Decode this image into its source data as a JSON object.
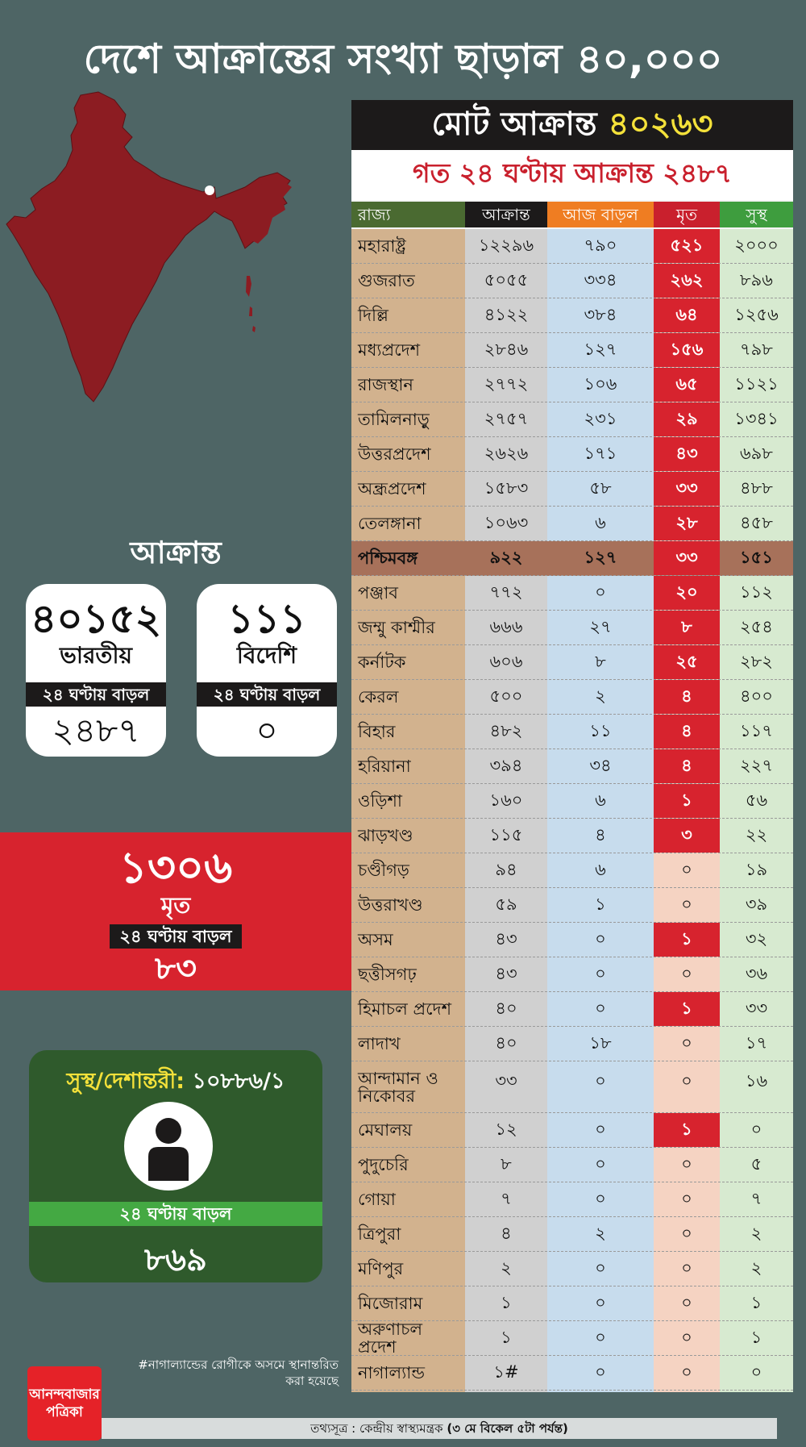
{
  "title": "দেশে আক্রান্তের সংখ্যা ছাড়াল ৪০,০০০",
  "total": {
    "label": "মোট আক্রান্ত",
    "value": "৪০২৬৩"
  },
  "last24": "গত ২৪ ঘণ্টায় আক্রান্ত ২৪৮৭",
  "chart_data": {
    "type": "table",
    "columns": [
      "রাজ্য",
      "আক্রান্ত",
      "আজ বাড়ল",
      "মৃত",
      "সুস্থ"
    ],
    "rows": [
      {
        "state": "মহারাষ্ট্র",
        "confirmed": "১২২৯৬",
        "today": "৭৯০",
        "deaths": "৫২১",
        "recovered": "২০০০",
        "death_highlight": true
      },
      {
        "state": "গুজরাত",
        "confirmed": "৫০৫৫",
        "today": "৩৩৪",
        "deaths": "২৬২",
        "recovered": "৮৯৬",
        "death_highlight": true
      },
      {
        "state": "দিল্লি",
        "confirmed": "৪১২২",
        "today": "৩৮৪",
        "deaths": "৬৪",
        "recovered": "১২৫৬",
        "death_highlight": true
      },
      {
        "state": "মধ্যপ্রদেশ",
        "confirmed": "২৮৪৬",
        "today": "১২৭",
        "deaths": "১৫৬",
        "recovered": "৭৯৮",
        "death_highlight": true
      },
      {
        "state": "রাজস্থান",
        "confirmed": "২৭৭২",
        "today": "১০৬",
        "deaths": "৬৫",
        "recovered": "১১২১",
        "death_highlight": true
      },
      {
        "state": "তামিলনাড়ু",
        "confirmed": "২৭৫৭",
        "today": "২৩১",
        "deaths": "২৯",
        "recovered": "১৩৪১",
        "death_highlight": true
      },
      {
        "state": "উত্তরপ্রদেশ",
        "confirmed": "২৬২৬",
        "today": "১৭১",
        "deaths": "৪৩",
        "recovered": "৬৯৮",
        "death_highlight": true
      },
      {
        "state": "অন্ধ্রপ্রদেশ",
        "confirmed": "১৫৮৩",
        "today": "৫৮",
        "deaths": "৩৩",
        "recovered": "৪৮৮",
        "death_highlight": true
      },
      {
        "state": "তেলঙ্গানা",
        "confirmed": "১০৬৩",
        "today": "৬",
        "deaths": "২৮",
        "recovered": "৪৫৮",
        "death_highlight": true
      },
      {
        "state": "পশ্চিমবঙ্গ",
        "confirmed": "৯২২",
        "today": "১২৭",
        "deaths": "৩৩",
        "recovered": "১৫১",
        "death_highlight": true,
        "featured": true
      },
      {
        "state": "পঞ্জাব",
        "confirmed": "৭৭২",
        "today": "০",
        "deaths": "২০",
        "recovered": "১১২",
        "death_highlight": true
      },
      {
        "state": "জম্মু কাশ্মীর",
        "confirmed": "৬৬৬",
        "today": "২৭",
        "deaths": "৮",
        "recovered": "২৫৪",
        "death_highlight": true
      },
      {
        "state": "কর্নাটক",
        "confirmed": "৬০৬",
        "today": "৮",
        "deaths": "২৫",
        "recovered": "২৮২",
        "death_highlight": true
      },
      {
        "state": "কেরল",
        "confirmed": "৫০০",
        "today": "২",
        "deaths": "৪",
        "recovered": "৪০০",
        "death_highlight": true
      },
      {
        "state": "বিহার",
        "confirmed": "৪৮২",
        "today": "১১",
        "deaths": "৪",
        "recovered": "১১৭",
        "death_highlight": true
      },
      {
        "state": "হরিয়ানা",
        "confirmed": "৩৯৪",
        "today": "৩৪",
        "deaths": "৪",
        "recovered": "২২৭",
        "death_highlight": true
      },
      {
        "state": "ওড়িশা",
        "confirmed": "১৬০",
        "today": "৬",
        "deaths": "১",
        "recovered": "৫৬",
        "death_highlight": true
      },
      {
        "state": "ঝাড়খণ্ড",
        "confirmed": "১১৫",
        "today": "৪",
        "deaths": "৩",
        "recovered": "২২",
        "death_highlight": true
      },
      {
        "state": "চণ্ডীগড়",
        "confirmed": "৯৪",
        "today": "৬",
        "deaths": "০",
        "recovered": "১৯",
        "death_highlight": false
      },
      {
        "state": "উত্তরাখণ্ড",
        "confirmed": "৫৯",
        "today": "১",
        "deaths": "০",
        "recovered": "৩৯",
        "death_highlight": false
      },
      {
        "state": "অসম",
        "confirmed": "৪৩",
        "today": "০",
        "deaths": "১",
        "recovered": "৩২",
        "death_highlight": true
      },
      {
        "state": "ছত্তীসগঢ়",
        "confirmed": "৪৩",
        "today": "০",
        "deaths": "০",
        "recovered": "৩৬",
        "death_highlight": false
      },
      {
        "state": "হিমাচল প্রদেশ",
        "confirmed": "৪০",
        "today": "০",
        "deaths": "১",
        "recovered": "৩৩",
        "death_highlight": true
      },
      {
        "state": "লাদাখ",
        "confirmed": "৪০",
        "today": "১৮",
        "deaths": "০",
        "recovered": "১৭",
        "death_highlight": false
      },
      {
        "state": "আন্দামান ও নিকোবর",
        "confirmed": "৩৩",
        "today": "০",
        "deaths": "০",
        "recovered": "১৬",
        "death_highlight": false,
        "tall": true
      },
      {
        "state": "মেঘালয়",
        "confirmed": "১২",
        "today": "০",
        "deaths": "১",
        "recovered": "০",
        "death_highlight": true
      },
      {
        "state": "পুদুচেরি",
        "confirmed": "৮",
        "today": "০",
        "deaths": "০",
        "recovered": "৫",
        "death_highlight": false
      },
      {
        "state": "গোয়া",
        "confirmed": "৭",
        "today": "০",
        "deaths": "০",
        "recovered": "৭",
        "death_highlight": false
      },
      {
        "state": "ত্রিপুরা",
        "confirmed": "৪",
        "today": "২",
        "deaths": "০",
        "recovered": "২",
        "death_highlight": false
      },
      {
        "state": "মণিপুর",
        "confirmed": "২",
        "today": "০",
        "deaths": "০",
        "recovered": "২",
        "death_highlight": false
      },
      {
        "state": "মিজোরাম",
        "confirmed": "১",
        "today": "০",
        "deaths": "০",
        "recovered": "১",
        "death_highlight": false
      },
      {
        "state": "অরুণাচল প্রদেশ",
        "confirmed": "১",
        "today": "০",
        "deaths": "০",
        "recovered": "১",
        "death_highlight": false
      },
      {
        "state": "নাগাল্যান্ড",
        "confirmed": "১#",
        "today": "০",
        "deaths": "০",
        "recovered": "০",
        "death_highlight": false
      }
    ]
  },
  "infected": {
    "label": "আক্রান্ত",
    "indian": {
      "value": "৪০১৫২",
      "label": "ভারতীয়",
      "strip": "২৪ ঘণ্টায় বাড়ল",
      "increase": "২৪৮৭"
    },
    "foreign": {
      "value": "১১১",
      "label": "বিদেশি",
      "strip": "২৪ ঘণ্টায় বাড়ল",
      "increase": "০"
    }
  },
  "deaths": {
    "value": "১৩০৬",
    "label": "মৃত",
    "strip": "২৪ ঘণ্টায় বাড়ল",
    "increase": "৮৩"
  },
  "recovered": {
    "label": "সুস্থ/দেশান্তরী:",
    "value": "১০৮৮৬/১",
    "strip": "২৪ ঘণ্টায় বাড়ল",
    "increase": "৮৬৯"
  },
  "footnote": "#নাগাল্যান্ডের রোগীকে অসমে স্থানান্তরিত করা হয়েছে",
  "logo": {
    "line1": "আনন্দবাজার",
    "line2": "পত্রিকা"
  },
  "source": {
    "prefix": "তথ্যসূত্র : কেন্দ্রীয় স্বাস্থ্যমন্ত্রক",
    "bold": "(৩ মে বিকেল ৫টা পর্যন্ত)"
  },
  "colors": {
    "map": "#8c1c22",
    "accent_red": "#d7232e",
    "header_yellow": "#f4e13a"
  }
}
